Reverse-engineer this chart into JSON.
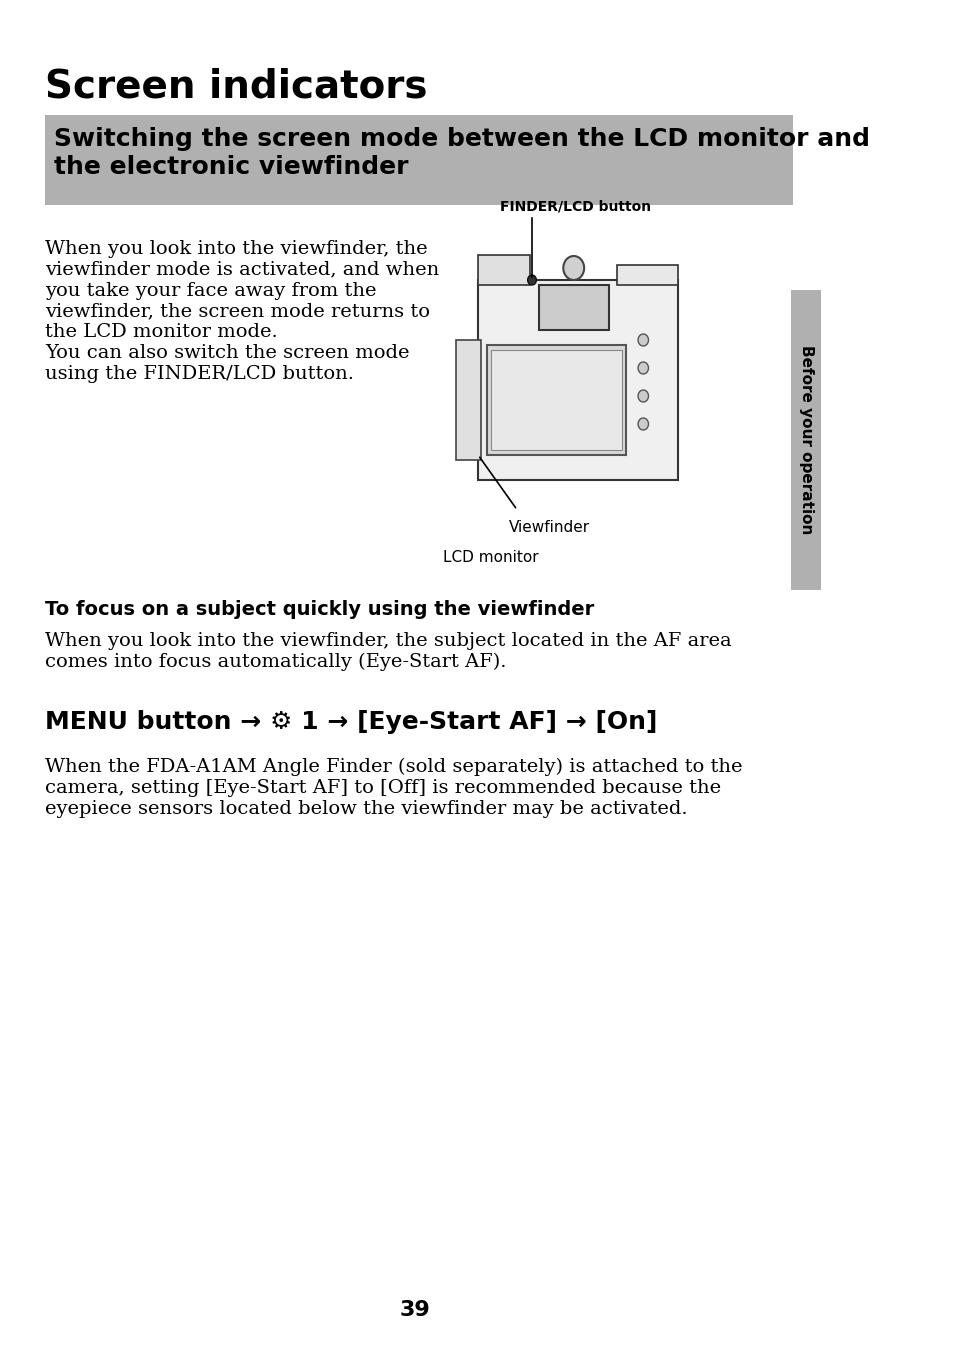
{
  "title": "Screen indicators",
  "subtitle_box_text": "Switching the screen mode between the LCD monitor and\nthe electronic viewfinder",
  "subtitle_box_bg": "#b0b0b0",
  "body_text_1": "When you look into the viewfinder, the\nviewfinder mode is activated, and when\nyou take your face away from the\nviewfinder, the screen mode returns to\nthe LCD monitor mode.\nYou can also switch the screen mode\nusing the FINDER/LCD button.",
  "label_finder_lcd": "FINDER/LCD button",
  "label_viewfinder": "Viewfinder",
  "label_lcd_monitor": "LCD monitor",
  "subheading": "To focus on a subject quickly using the viewfinder",
  "body_text_2": "When you look into the viewfinder, the subject located in the AF area\ncomes into focus automatically (Eye-Start AF).",
  "menu_heading": "MENU button → ⚙ 1 → [Eye-Start AF] → [On]",
  "body_text_3": "When the FDA-A1AM Angle Finder (sold separately) is attached to the\ncamera, setting [Eye-Start AF] to [Off] is recommended because the\neyepiece sensors located below the viewfinder may be activated.",
  "side_label": "Before your operation",
  "page_number": "39",
  "bg_color": "#ffffff",
  "text_color": "#000000",
  "side_tab_color": "#b0b0b0"
}
